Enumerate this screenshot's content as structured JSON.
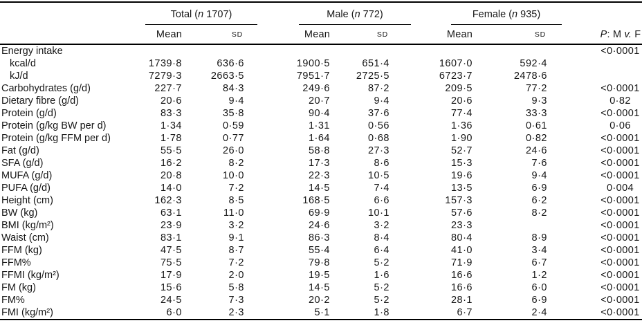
{
  "header": {
    "groups": [
      {
        "pre": "Total (",
        "n": "n",
        "post": " 1707)"
      },
      {
        "pre": "Male (",
        "n": "n",
        "post": " 772)"
      },
      {
        "pre": "Female (",
        "n": "n",
        "post": " 935)"
      }
    ],
    "mean_label": "Mean",
    "sd_label": "SD",
    "p_label": {
      "p": "P",
      "mid": ": M ",
      "v": "v.",
      "end": " F"
    }
  },
  "rows": [
    {
      "label": "Energy intake",
      "indent": false,
      "cells": [
        "",
        "",
        "",
        "",
        "",
        ""
      ],
      "p": "<0·0001"
    },
    {
      "label": "kcal/d",
      "indent": true,
      "cells": [
        "1739·8",
        "636·6",
        "1900·5",
        "651·4",
        "1607·0",
        "592·4"
      ],
      "p": ""
    },
    {
      "label": "kJ/d",
      "indent": true,
      "cells": [
        "7279·3",
        "2663·5",
        "7951·7",
        "2725·5",
        "6723·7",
        "2478·6"
      ],
      "p": ""
    },
    {
      "label": "Carbohydrates (g/d)",
      "indent": false,
      "cells": [
        "227·7",
        "84·3",
        "249·6",
        "87·2",
        "209·5",
        "77·2"
      ],
      "p": "<0·0001"
    },
    {
      "label": "Dietary fibre (g/d)",
      "indent": false,
      "cells": [
        "20·6",
        "9·4",
        "20·7",
        "9·4",
        "20·6",
        "9·3"
      ],
      "p": "0·82"
    },
    {
      "label": "Protein (g/d)",
      "indent": false,
      "cells": [
        "83·3",
        "35·8",
        "90·4",
        "37·6",
        "77·4",
        "33·3"
      ],
      "p": "<0·0001"
    },
    {
      "label": "Protein (g/kg BW per d)",
      "indent": false,
      "cells": [
        "1·34",
        "0·59",
        "1·31",
        "0·56",
        "1·36",
        "0·61"
      ],
      "p": "0·06"
    },
    {
      "label": "Protein (g/kg FFM per d)",
      "indent": false,
      "cells": [
        "1·78",
        "0·77",
        "1·64",
        "0·68",
        "1·90",
        "0·82"
      ],
      "p": "<0·0001"
    },
    {
      "label": "Fat (g/d)",
      "indent": false,
      "cells": [
        "55·5",
        "26·0",
        "58·8",
        "27·3",
        "52·7",
        "24·6"
      ],
      "p": "<0·0001"
    },
    {
      "label": "SFA (g/d)",
      "indent": false,
      "cells": [
        "16·2",
        "8·2",
        "17·3",
        "8·6",
        "15·3",
        "7·6"
      ],
      "p": "<0·0001"
    },
    {
      "label": "MUFA (g/d)",
      "indent": false,
      "cells": [
        "20·8",
        "10·0",
        "22·3",
        "10·5",
        "19·6",
        "9·4"
      ],
      "p": "<0·0001"
    },
    {
      "label": "PUFA (g/d)",
      "indent": false,
      "cells": [
        "14·0",
        "7·2",
        "14·5",
        "7·4",
        "13·5",
        "6·9"
      ],
      "p": "0·004"
    },
    {
      "label": "Height (cm)",
      "indent": false,
      "cells": [
        "162·3",
        "8·5",
        "168·5",
        "6·6",
        "157·3",
        "6·2"
      ],
      "p": "<0·0001"
    },
    {
      "label": "BW (kg)",
      "indent": false,
      "cells": [
        "63·1",
        "11·0",
        "69·9",
        "10·1",
        "57·6",
        "8·2"
      ],
      "p": "<0·0001"
    },
    {
      "label": "BMI (kg/m²)",
      "indent": false,
      "cells": [
        "23·9",
        "3·2",
        "24·6",
        "3·2",
        "23·3",
        ""
      ],
      "p": "<0·0001"
    },
    {
      "label": "Waist (cm)",
      "indent": false,
      "cells": [
        "83·1",
        "9·1",
        "86·3",
        "8·4",
        "80·4",
        "8·9"
      ],
      "p": "<0·0001"
    },
    {
      "label": "FFM (kg)",
      "indent": false,
      "cells": [
        "47·5",
        "8·7",
        "55·4",
        "6·4",
        "41·0",
        "3·4"
      ],
      "p": "<0·0001"
    },
    {
      "label": "FFM%",
      "indent": false,
      "cells": [
        "75·5",
        "7·2",
        "79·8",
        "5·2",
        "71·9",
        "6·7"
      ],
      "p": "<0·0001"
    },
    {
      "label": "FFMI (kg/m²)",
      "indent": false,
      "cells": [
        "17·9",
        "2·0",
        "19·5",
        "1·6",
        "16·6",
        "1·2"
      ],
      "p": "<0·0001"
    },
    {
      "label": "FM (kg)",
      "indent": false,
      "cells": [
        "15·6",
        "5·8",
        "14·5",
        "5·2",
        "16·6",
        "6·0"
      ],
      "p": "<0·0001"
    },
    {
      "label": "FM%",
      "indent": false,
      "cells": [
        "24·5",
        "7·3",
        "20·2",
        "5·2",
        "28·1",
        "6·9"
      ],
      "p": "<0·0001"
    },
    {
      "label": "FMI (kg/m²)",
      "indent": false,
      "cells": [
        "6·0",
        "2·3",
        "5·1",
        "1·8",
        "6·7",
        "2·4"
      ],
      "p": "<0·0001"
    }
  ]
}
